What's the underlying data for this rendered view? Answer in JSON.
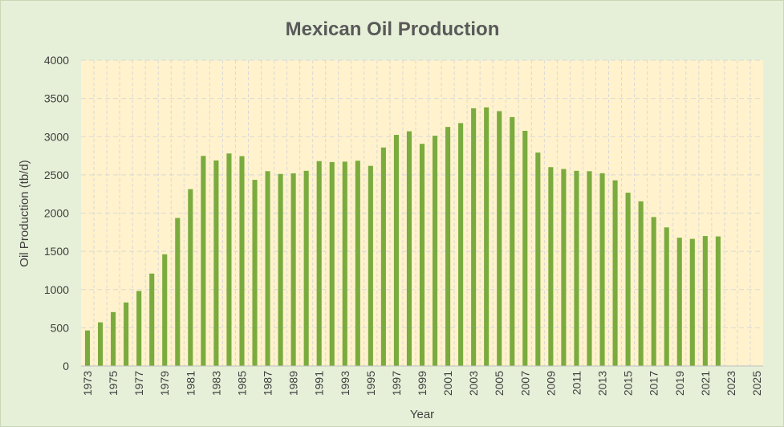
{
  "chart_data": {
    "type": "bar",
    "title": "Mexican Oil Production",
    "xlabel": "Year",
    "ylabel": "Oil Production (tb/d)",
    "ylim": [
      0,
      4000
    ],
    "yticks": [
      "0",
      "500",
      "1000",
      "1500",
      "2000",
      "2500",
      "3000",
      "3500",
      "4000"
    ],
    "xlim": [
      1973,
      2025
    ],
    "xtick_labels": [
      "1973",
      "1975",
      "1977",
      "1979",
      "1981",
      "1983",
      "1985",
      "1987",
      "1989",
      "1991",
      "1993",
      "1995",
      "1997",
      "1999",
      "2001",
      "2003",
      "2005",
      "2007",
      "2009",
      "2011",
      "2013",
      "2015",
      "2017",
      "2019",
      "2021",
      "2023",
      "2025"
    ],
    "grid": true,
    "legend": "none",
    "colors": {
      "bar": "#7aab3e",
      "plot_background": "#fff2cc",
      "chart_background": "#e6f0d8",
      "grid": "#d9d9d9"
    },
    "years": [
      1973,
      1974,
      1975,
      1976,
      1977,
      1978,
      1979,
      1980,
      1981,
      1982,
      1983,
      1984,
      1985,
      1986,
      1987,
      1988,
      1989,
      1990,
      1991,
      1992,
      1993,
      1994,
      1995,
      1996,
      1997,
      1998,
      1999,
      2000,
      2001,
      2002,
      2003,
      2004,
      2005,
      2006,
      2007,
      2008,
      2009,
      2010,
      2011,
      2012,
      2013,
      2014,
      2015,
      2016,
      2017,
      2018,
      2019,
      2020,
      2021,
      2022
    ],
    "values": [
      465,
      571,
      705,
      831,
      981,
      1209,
      1461,
      1936,
      2313,
      2748,
      2689,
      2780,
      2745,
      2435,
      2548,
      2512,
      2520,
      2553,
      2680,
      2668,
      2673,
      2685,
      2618,
      2858,
      3023,
      3070,
      2906,
      3012,
      3127,
      3177,
      3371,
      3383,
      3334,
      3256,
      3076,
      2792,
      2601,
      2577,
      2553,
      2548,
      2522,
      2429,
      2267,
      2154,
      1948,
      1813,
      1678,
      1663,
      1700,
      1695
    ]
  }
}
